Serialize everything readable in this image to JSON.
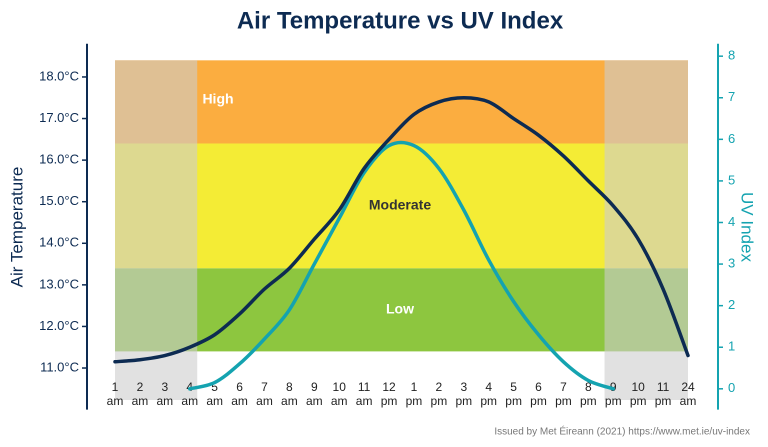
{
  "chart_data": {
    "type": "line",
    "title": "Air Temperature vs UV Index",
    "ylabel": "Air Temperature",
    "y2label": "UV Index",
    "footnote": "Issued by Met Éireann (2021) https://www.met.ie/uv-index",
    "categories": [
      [
        "1",
        "am"
      ],
      [
        "2",
        "am"
      ],
      [
        "3",
        "am"
      ],
      [
        "4",
        "am"
      ],
      [
        "5",
        "am"
      ],
      [
        "6",
        "am"
      ],
      [
        "7",
        "am"
      ],
      [
        "8",
        "am"
      ],
      [
        "9",
        "am"
      ],
      [
        "10",
        "am"
      ],
      [
        "11",
        "am"
      ],
      [
        "12",
        "pm"
      ],
      [
        "1",
        "pm"
      ],
      [
        "2",
        "pm"
      ],
      [
        "3",
        "pm"
      ],
      [
        "4",
        "pm"
      ],
      [
        "5",
        "pm"
      ],
      [
        "6",
        "pm"
      ],
      [
        "7",
        "pm"
      ],
      [
        "8",
        "pm"
      ],
      [
        "9",
        "pm"
      ],
      [
        "10",
        "pm"
      ],
      [
        "11",
        "pm"
      ],
      [
        "24",
        "am"
      ]
    ],
    "ylim": [
      10,
      18.8
    ],
    "yticks": [
      {
        "value": 11,
        "label": "11.0°C"
      },
      {
        "value": 12,
        "label": "12.0°C"
      },
      {
        "value": 13,
        "label": "13.0°C"
      },
      {
        "value": 14,
        "label": "14.0°C"
      },
      {
        "value": 15,
        "label": "15.0°C"
      },
      {
        "value": 16,
        "label": "16.0°C"
      },
      {
        "value": 17,
        "label": "17.0°C"
      },
      {
        "value": 18,
        "label": "18.0°C"
      }
    ],
    "y2lim": [
      -0.5,
      8.3
    ],
    "y2ticks": [
      0,
      1,
      2,
      3,
      4,
      5,
      6,
      7,
      8
    ],
    "bands": [
      {
        "label": "Low",
        "from": 0.9,
        "to": 2.9,
        "color": "#8dc63f",
        "text_color": "#ffffff"
      },
      {
        "label": "Moderate",
        "from": 2.9,
        "to": 5.9,
        "color": "#f4ec35",
        "text_color": "#333333"
      },
      {
        "label": "High",
        "from": 5.9,
        "to": 7.9,
        "color": "#fbad40",
        "text_color": "#ffffff"
      }
    ],
    "series": [
      {
        "color": "#0d2b52",
        "values": [
          11.15,
          11.2,
          11.3,
          11.5,
          11.8,
          12.3,
          12.9,
          13.4,
          14.1,
          14.8,
          15.8,
          16.5,
          17.1,
          17.4,
          17.5,
          17.4,
          17.0,
          16.6,
          16.1,
          15.5,
          14.9,
          14.1,
          12.9,
          11.3
        ]
      },
      {
        "color": "#14a3b0",
        "axis": "y2",
        "values": [
          null,
          null,
          null,
          0,
          0.15,
          0.6,
          1.2,
          1.9,
          3.0,
          4.1,
          5.2,
          5.85,
          5.85,
          5.3,
          4.3,
          3.1,
          2.1,
          1.3,
          0.65,
          0.2,
          0,
          null,
          null,
          null
        ]
      }
    ]
  }
}
